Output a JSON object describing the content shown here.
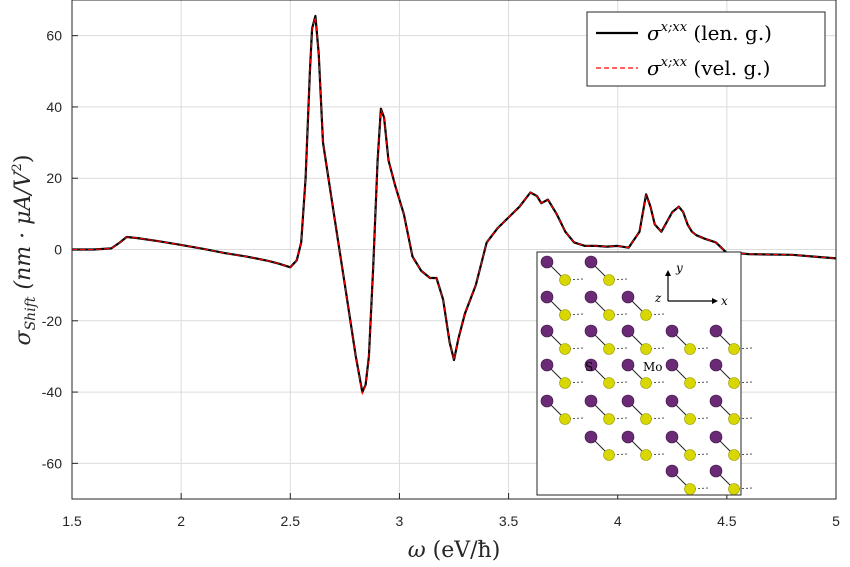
{
  "chart_data": {
    "type": "line",
    "xlabel": "ω (eV/ħ)",
    "ylabel": "σShift (nm·μA/V²)",
    "xlim": [
      1.5,
      5
    ],
    "ylim": [
      -70,
      70
    ],
    "xticks": [
      1.5,
      2,
      2.5,
      3,
      3.5,
      4,
      4.5,
      5
    ],
    "yticks": [
      -60,
      -40,
      -20,
      0,
      20,
      40,
      60
    ],
    "xtick_labels": [
      "1.5",
      "2",
      "2.5",
      "3",
      "3.5",
      "4",
      "4.5",
      "5"
    ],
    "ytick_labels": [
      "-60",
      "-40",
      "-20",
      "0",
      "20",
      "40",
      "60"
    ],
    "grid": true,
    "legend_position": "top-right",
    "series": [
      {
        "name": "σ^{x;xx} (len. g.)",
        "color": "#000000",
        "style": "solid",
        "x": [
          1.5,
          1.6,
          1.68,
          1.72,
          1.75,
          1.8,
          1.9,
          2.0,
          2.1,
          2.2,
          2.3,
          2.4,
          2.45,
          2.5,
          2.53,
          2.55,
          2.57,
          2.59,
          2.6,
          2.615,
          2.63,
          2.65,
          2.7,
          2.75,
          2.8,
          2.83,
          2.845,
          2.86,
          2.88,
          2.9,
          2.915,
          2.93,
          2.95,
          2.98,
          3.02,
          3.06,
          3.1,
          3.14,
          3.17,
          3.2,
          3.23,
          3.25,
          3.27,
          3.3,
          3.35,
          3.4,
          3.45,
          3.5,
          3.55,
          3.6,
          3.63,
          3.65,
          3.68,
          3.72,
          3.76,
          3.8,
          3.85,
          3.9,
          3.95,
          4.0,
          4.05,
          4.1,
          4.13,
          4.15,
          4.17,
          4.2,
          4.25,
          4.28,
          4.3,
          4.32,
          4.34,
          4.36,
          4.4,
          4.45,
          4.5,
          4.55,
          4.6,
          4.7,
          4.8,
          4.9,
          5.0
        ],
        "y": [
          0,
          0,
          0.3,
          2,
          3.5,
          3.2,
          2.3,
          1.3,
          0.2,
          -1,
          -2,
          -3.2,
          -4,
          -5,
          -3,
          2,
          20,
          50,
          62,
          65.5,
          55,
          30,
          10,
          -10,
          -30,
          -40,
          -38,
          -30,
          -5,
          25,
          39.5,
          37,
          25,
          18,
          10,
          -2,
          -6,
          -8,
          -8,
          -14,
          -26,
          -31,
          -25,
          -18,
          -10,
          2,
          6,
          9,
          12,
          16,
          15,
          13,
          14,
          10,
          5,
          2,
          1,
          1,
          0.8,
          1,
          0.5,
          5,
          15.5,
          12,
          7,
          5,
          10.5,
          12,
          10.5,
          7,
          5,
          4,
          3,
          2,
          -1,
          -1,
          -1.3,
          -1.4,
          -1.5,
          -2,
          -2.5
        ]
      },
      {
        "name": "σ^{x;xx} (vel. g.)",
        "color": "#ff0000",
        "style": "dashed",
        "x": [
          1.5,
          1.6,
          1.68,
          1.72,
          1.75,
          1.8,
          1.9,
          2.0,
          2.1,
          2.2,
          2.3,
          2.4,
          2.45,
          2.5,
          2.53,
          2.55,
          2.57,
          2.59,
          2.6,
          2.615,
          2.63,
          2.65,
          2.7,
          2.75,
          2.8,
          2.83,
          2.845,
          2.86,
          2.88,
          2.9,
          2.915,
          2.93,
          2.95,
          2.98,
          3.02,
          3.06,
          3.1,
          3.14,
          3.17,
          3.2,
          3.23,
          3.25,
          3.27,
          3.3,
          3.35,
          3.4,
          3.45,
          3.5,
          3.55,
          3.6,
          3.63,
          3.65,
          3.68,
          3.72,
          3.76,
          3.8,
          3.85,
          3.9,
          3.95,
          4.0,
          4.05,
          4.1,
          4.13,
          4.15,
          4.17,
          4.2,
          4.25,
          4.28,
          4.3,
          4.32,
          4.34,
          4.36,
          4.4,
          4.45,
          4.5,
          4.55,
          4.6,
          4.7,
          4.8,
          4.9,
          5.0
        ],
        "y": [
          0,
          0,
          0.3,
          2,
          3.5,
          3.2,
          2.3,
          1.3,
          0.2,
          -1,
          -2,
          -3.2,
          -4,
          -5,
          -3,
          2,
          20,
          50,
          62,
          65.2,
          55,
          30,
          10,
          -10,
          -30,
          -40.5,
          -38,
          -30,
          -5,
          25,
          39.2,
          37,
          25,
          18,
          10,
          -2,
          -6,
          -8,
          -8,
          -14,
          -26,
          -31,
          -25,
          -18,
          -10,
          2,
          6,
          9,
          12,
          16,
          15,
          13,
          14,
          10,
          5,
          2,
          1,
          1,
          0.8,
          1,
          0.5,
          5,
          15.3,
          12,
          7,
          5,
          10.3,
          12,
          10.5,
          7,
          5,
          4,
          3,
          2,
          -1,
          -1,
          -1.3,
          -1.4,
          -1.5,
          -2,
          -2.5
        ]
      }
    ],
    "inset": {
      "labels": {
        "s": "S",
        "mo": "Mo",
        "x": "x",
        "y": "y",
        "z": "z"
      },
      "colors": {
        "mo": "#6b2a75",
        "s": "#d8d800"
      }
    }
  },
  "legend": {
    "entries": [
      {
        "symbol": "σ",
        "sup": "x;xx",
        "text": " (len. g.)"
      },
      {
        "symbol": "σ",
        "sup": "x;xx",
        "text": " (vel. g.)"
      }
    ]
  },
  "axes": {
    "xlabel_sym": "ω",
    "xlabel_unit": " (eV/ħ)",
    "ylabel_sym": "σ",
    "ylabel_sub": "Shift",
    "ylabel_unit": " (nm · μA/V",
    "ylabel_pow": "2",
    "ylabel_close": ")"
  }
}
